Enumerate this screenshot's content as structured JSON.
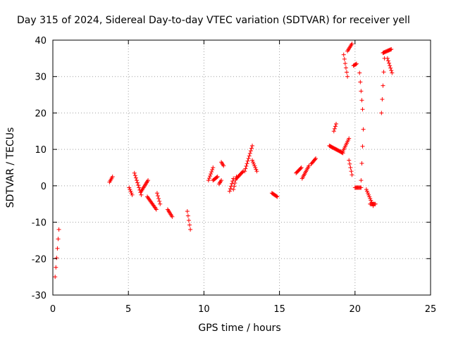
{
  "chart_data": {
    "type": "scatter",
    "title": "Day 315 of 2024, Sidereal Day-to-day VTEC variation (SDTVAR) for receiver yell",
    "xlabel": "GPS time / hours",
    "ylabel": "SDTVAR / TECUs",
    "xlim": [
      0,
      25
    ],
    "ylim": [
      -30,
      40
    ],
    "xticks": [
      0,
      5,
      10,
      15,
      20,
      25
    ],
    "yticks": [
      -30,
      -20,
      -10,
      0,
      10,
      20,
      30,
      40
    ],
    "grid": true,
    "marker": "plus",
    "color": "#ff0000",
    "series": [
      {
        "name": "SDTVAR",
        "segments": [
          {
            "x": [
              0.15,
              0.4
            ],
            "y": [
              -25,
              -12
            ]
          },
          {
            "x": [
              3.75,
              3.95
            ],
            "y": [
              1,
              2.5
            ]
          },
          {
            "x": [
              5.05,
              5.25
            ],
            "y": [
              -0.5,
              -2.5
            ]
          },
          {
            "x": [
              5.4,
              5.85
            ],
            "y": [
              3.5,
              -2.5
            ]
          },
          {
            "x": [
              5.85,
              6.3
            ],
            "y": [
              -1.5,
              1.5
            ]
          },
          {
            "x": [
              6.25,
              6.85
            ],
            "y": [
              -3,
              -6.5
            ]
          },
          {
            "x": [
              6.9,
              7.1
            ],
            "y": [
              -2,
              -5
            ]
          },
          {
            "x": [
              7.6,
              7.9
            ],
            "y": [
              -6.5,
              -8.5
            ]
          },
          {
            "x": [
              8.9,
              9.1
            ],
            "y": [
              -7,
              -12
            ]
          },
          {
            "x": [
              10.3,
              10.6
            ],
            "y": [
              1.5,
              5
            ]
          },
          {
            "x": [
              10.6,
              10.9
            ],
            "y": [
              1.5,
              2.5
            ]
          },
          {
            "x": [
              11.0,
              11.15
            ],
            "y": [
              0.5,
              1.5
            ]
          },
          {
            "x": [
              11.15,
              11.3
            ],
            "y": [
              6.5,
              5.5
            ]
          },
          {
            "x": [
              11.7,
              11.95
            ],
            "y": [
              -1.5,
              2
            ]
          },
          {
            "x": [
              11.95,
              12.15
            ],
            "y": [
              -1,
              2.5
            ]
          },
          {
            "x": [
              12.15,
              12.6
            ],
            "y": [
              2,
              4
            ]
          },
          {
            "x": [
              12.7,
              13.2
            ],
            "y": [
              4,
              11
            ]
          },
          {
            "x": [
              13.2,
              13.5
            ],
            "y": [
              7,
              4
            ]
          },
          {
            "x": [
              14.5,
              14.85
            ],
            "y": [
              -2,
              -3
            ]
          },
          {
            "x": [
              16.1,
              16.45
            ],
            "y": [
              3.5,
              5
            ]
          },
          {
            "x": [
              16.5,
              16.95
            ],
            "y": [
              2,
              5.5
            ]
          },
          {
            "x": [
              17.1,
              17.4
            ],
            "y": [
              6,
              7.5
            ]
          },
          {
            "x": [
              18.3,
              19.2
            ],
            "y": [
              11,
              9
            ]
          },
          {
            "x": [
              18.6,
              18.75
            ],
            "y": [
              15,
              17
            ]
          },
          {
            "x": [
              19.2,
              19.6
            ],
            "y": [
              9.5,
              13
            ]
          },
          {
            "x": [
              19.25,
              19.5
            ],
            "y": [
              36,
              30
            ]
          },
          {
            "x": [
              19.5,
              19.8
            ],
            "y": [
              37,
              39
            ]
          },
          {
            "x": [
              19.6,
              19.8
            ],
            "y": [
              7,
              3
            ]
          },
          {
            "x": [
              19.9,
              20.1
            ],
            "y": [
              33,
              33.5
            ]
          },
          {
            "x": [
              20.0,
              20.4
            ],
            "y": [
              -0.5,
              -0.5
            ]
          },
          {
            "x": [
              20.3,
              20.5
            ],
            "y": [
              31,
              21
            ]
          },
          {
            "x": [
              20.4,
              20.55
            ],
            "y": [
              1.5,
              15.5
            ]
          },
          {
            "x": [
              20.75,
              21.2
            ],
            "y": [
              -1,
              -5.5
            ]
          },
          {
            "x": [
              21.0,
              21.35
            ],
            "y": [
              -5,
              -5
            ]
          },
          {
            "x": [
              21.75,
              21.95
            ],
            "y": [
              20,
              35
            ]
          },
          {
            "x": [
              21.85,
              22.4
            ],
            "y": [
              36.5,
              37.5
            ]
          },
          {
            "x": [
              22.15,
              22.45
            ],
            "y": [
              35,
              31
            ]
          }
        ]
      }
    ]
  }
}
